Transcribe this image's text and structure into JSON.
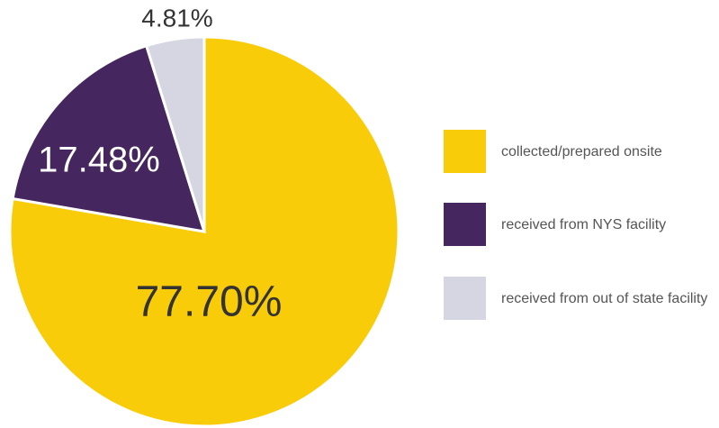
{
  "chart_data": {
    "type": "pie",
    "labels": [
      "collected/prepared onsite",
      "received from NYS facility",
      "received from out of state facility"
    ],
    "values": [
      77.7,
      17.48,
      4.81
    ],
    "value_labels": [
      "77.70%",
      "17.48%",
      "4.81%"
    ],
    "colors": [
      "#f9cc0a",
      "#45265e",
      "#d5d6e2"
    ]
  }
}
